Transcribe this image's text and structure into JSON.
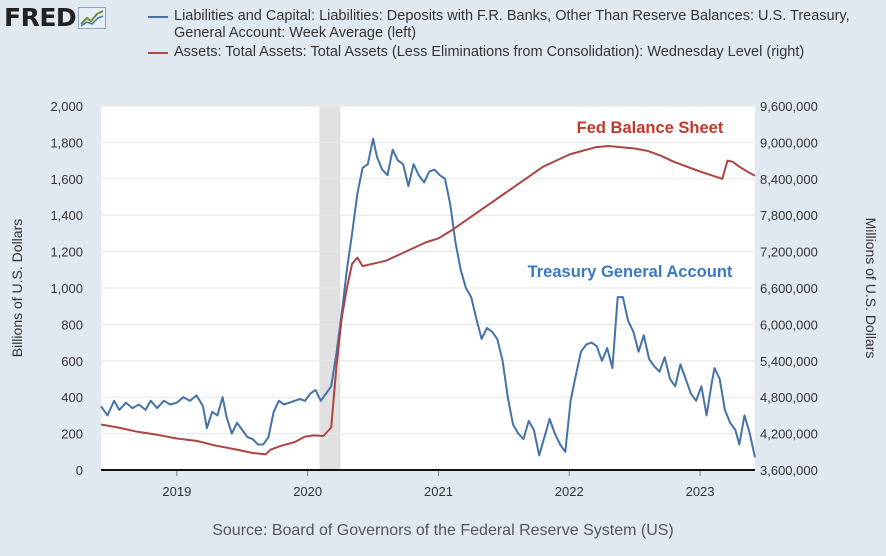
{
  "header": {
    "logo_text": "FRED",
    "logo_icon": "fred-graph-icon"
  },
  "legend": [
    {
      "label": "Liabilities and Capital: Liabilities: Deposits with F.R. Banks, Other Than Reserve Balances: U.S. Treasury, General Account: Week Average (left)",
      "color": "#4572a7"
    },
    {
      "label": "Assets: Total Assets: Total Assets (Less Eliminations from Consolidation): Wednesday Level (right)",
      "color": "#aa4643"
    }
  ],
  "source": "Source: Board of Governors of the Federal Reserve System (US)",
  "chart_data": {
    "type": "line",
    "ylabel_left": "Billions of U.S. Dollars",
    "ylabel_right": "Millions of U.S. Dollars",
    "y_left_ticks": [
      "0",
      "200",
      "400",
      "600",
      "800",
      "1,000",
      "1,200",
      "1,400",
      "1,600",
      "1,800",
      "2,000"
    ],
    "y_right_ticks": [
      "3,600,000",
      "4,200,000",
      "4,800,000",
      "5,400,000",
      "6,000,000",
      "6,600,000",
      "7,200,000",
      "7,800,000",
      "8,400,000",
      "9,000,000",
      "9,600,000"
    ],
    "ylim_left": [
      0,
      2000
    ],
    "ylim_right": [
      3600000,
      9600000
    ],
    "xlim": [
      2018.42,
      2023.42
    ],
    "x_ticks": [
      {
        "value": 2019,
        "label": "2019"
      },
      {
        "value": 2020,
        "label": "2020"
      },
      {
        "value": 2021,
        "label": "2021"
      },
      {
        "value": 2022,
        "label": "2022"
      },
      {
        "value": 2023,
        "label": "2023"
      }
    ],
    "recession": [
      2020.09,
      2020.25
    ],
    "grid": true,
    "annotations": [
      {
        "text": "Fed Balance Sheet",
        "color": "#c0392b"
      },
      {
        "text": "Treasury General Account",
        "color": "#3b78c4"
      }
    ],
    "series": [
      {
        "name": "Liabilities and Capital: Liabilities: Deposits with F.R. Banks, Other Than Reserve Balances: U.S. Treasury, General Account: Week Average (left)",
        "axis": "left",
        "color": "#4572a7",
        "points": [
          [
            2018.42,
            350
          ],
          [
            2018.47,
            300
          ],
          [
            2018.52,
            380
          ],
          [
            2018.56,
            330
          ],
          [
            2018.61,
            370
          ],
          [
            2018.66,
            340
          ],
          [
            2018.71,
            360
          ],
          [
            2018.76,
            330
          ],
          [
            2018.8,
            380
          ],
          [
            2018.85,
            340
          ],
          [
            2018.9,
            380
          ],
          [
            2018.95,
            360
          ],
          [
            2019.0,
            370
          ],
          [
            2019.05,
            400
          ],
          [
            2019.1,
            380
          ],
          [
            2019.15,
            410
          ],
          [
            2019.2,
            350
          ],
          [
            2019.23,
            230
          ],
          [
            2019.27,
            320
          ],
          [
            2019.31,
            300
          ],
          [
            2019.35,
            400
          ],
          [
            2019.38,
            290
          ],
          [
            2019.42,
            200
          ],
          [
            2019.46,
            260
          ],
          [
            2019.5,
            220
          ],
          [
            2019.54,
            180
          ],
          [
            2019.58,
            170
          ],
          [
            2019.62,
            140
          ],
          [
            2019.66,
            140
          ],
          [
            2019.7,
            180
          ],
          [
            2019.74,
            320
          ],
          [
            2019.78,
            380
          ],
          [
            2019.82,
            360
          ],
          [
            2019.86,
            370
          ],
          [
            2019.9,
            380
          ],
          [
            2019.94,
            390
          ],
          [
            2019.98,
            380
          ],
          [
            2020.02,
            420
          ],
          [
            2020.06,
            440
          ],
          [
            2020.1,
            380
          ],
          [
            2020.14,
            420
          ],
          [
            2020.18,
            460
          ],
          [
            2020.22,
            640
          ],
          [
            2020.26,
            860
          ],
          [
            2020.3,
            1100
          ],
          [
            2020.34,
            1300
          ],
          [
            2020.38,
            1520
          ],
          [
            2020.42,
            1660
          ],
          [
            2020.46,
            1680
          ],
          [
            2020.5,
            1820
          ],
          [
            2020.53,
            1720
          ],
          [
            2020.57,
            1650
          ],
          [
            2020.61,
            1620
          ],
          [
            2020.65,
            1760
          ],
          [
            2020.69,
            1700
          ],
          [
            2020.73,
            1680
          ],
          [
            2020.77,
            1560
          ],
          [
            2020.81,
            1680
          ],
          [
            2020.85,
            1620
          ],
          [
            2020.89,
            1580
          ],
          [
            2020.93,
            1640
          ],
          [
            2020.97,
            1650
          ],
          [
            2021.01,
            1620
          ],
          [
            2021.05,
            1600
          ],
          [
            2021.09,
            1460
          ],
          [
            2021.13,
            1250
          ],
          [
            2021.17,
            1100
          ],
          [
            2021.21,
            1000
          ],
          [
            2021.25,
            950
          ],
          [
            2021.29,
            830
          ],
          [
            2021.33,
            720
          ],
          [
            2021.37,
            780
          ],
          [
            2021.41,
            760
          ],
          [
            2021.45,
            720
          ],
          [
            2021.49,
            600
          ],
          [
            2021.53,
            400
          ],
          [
            2021.57,
            250
          ],
          [
            2021.61,
            200
          ],
          [
            2021.65,
            170
          ],
          [
            2021.69,
            270
          ],
          [
            2021.73,
            220
          ],
          [
            2021.77,
            80
          ],
          [
            2021.81,
            180
          ],
          [
            2021.85,
            280
          ],
          [
            2021.89,
            200
          ],
          [
            2021.93,
            140
          ],
          [
            2021.97,
            100
          ],
          [
            2022.01,
            380
          ],
          [
            2022.05,
            520
          ],
          [
            2022.09,
            650
          ],
          [
            2022.13,
            690
          ],
          [
            2022.17,
            700
          ],
          [
            2022.21,
            680
          ],
          [
            2022.25,
            600
          ],
          [
            2022.29,
            670
          ],
          [
            2022.33,
            560
          ],
          [
            2022.37,
            950
          ],
          [
            2022.41,
            950
          ],
          [
            2022.45,
            820
          ],
          [
            2022.49,
            760
          ],
          [
            2022.53,
            650
          ],
          [
            2022.57,
            740
          ],
          [
            2022.61,
            610
          ],
          [
            2022.65,
            570
          ],
          [
            2022.69,
            540
          ],
          [
            2022.73,
            620
          ],
          [
            2022.77,
            500
          ],
          [
            2022.81,
            460
          ],
          [
            2022.85,
            580
          ],
          [
            2022.89,
            500
          ],
          [
            2022.93,
            420
          ],
          [
            2022.97,
            380
          ],
          [
            2023.01,
            460
          ],
          [
            2023.05,
            300
          ],
          [
            2023.09,
            480
          ],
          [
            2023.11,
            560
          ],
          [
            2023.15,
            500
          ],
          [
            2023.19,
            330
          ],
          [
            2023.23,
            260
          ],
          [
            2023.27,
            220
          ],
          [
            2023.3,
            140
          ],
          [
            2023.34,
            300
          ],
          [
            2023.38,
            200
          ],
          [
            2023.42,
            70
          ]
        ]
      },
      {
        "name": "Assets: Total Assets: Total Assets (Less Eliminations from Consolidation): Wednesday Level (right)",
        "axis": "right",
        "color": "#aa4643",
        "points": [
          [
            2018.42,
            4350000
          ],
          [
            2018.55,
            4300000
          ],
          [
            2018.7,
            4230000
          ],
          [
            2018.85,
            4180000
          ],
          [
            2019.0,
            4120000
          ],
          [
            2019.15,
            4080000
          ],
          [
            2019.3,
            4000000
          ],
          [
            2019.45,
            3940000
          ],
          [
            2019.58,
            3880000
          ],
          [
            2019.68,
            3860000
          ],
          [
            2019.72,
            3940000
          ],
          [
            2019.8,
            4000000
          ],
          [
            2019.9,
            4060000
          ],
          [
            2019.98,
            4150000
          ],
          [
            2020.05,
            4170000
          ],
          [
            2020.12,
            4160000
          ],
          [
            2020.18,
            4300000
          ],
          [
            2020.22,
            5300000
          ],
          [
            2020.26,
            6100000
          ],
          [
            2020.3,
            6600000
          ],
          [
            2020.34,
            7000000
          ],
          [
            2020.38,
            7100000
          ],
          [
            2020.42,
            6960000
          ],
          [
            2020.46,
            6980000
          ],
          [
            2020.5,
            7000000
          ],
          [
            2020.6,
            7050000
          ],
          [
            2020.7,
            7150000
          ],
          [
            2020.8,
            7250000
          ],
          [
            2020.9,
            7350000
          ],
          [
            2021.0,
            7420000
          ],
          [
            2021.1,
            7550000
          ],
          [
            2021.2,
            7700000
          ],
          [
            2021.3,
            7850000
          ],
          [
            2021.4,
            8000000
          ],
          [
            2021.5,
            8150000
          ],
          [
            2021.6,
            8300000
          ],
          [
            2021.7,
            8450000
          ],
          [
            2021.8,
            8600000
          ],
          [
            2021.9,
            8700000
          ],
          [
            2022.0,
            8800000
          ],
          [
            2022.1,
            8860000
          ],
          [
            2022.2,
            8920000
          ],
          [
            2022.3,
            8940000
          ],
          [
            2022.4,
            8920000
          ],
          [
            2022.5,
            8900000
          ],
          [
            2022.6,
            8860000
          ],
          [
            2022.7,
            8780000
          ],
          [
            2022.8,
            8680000
          ],
          [
            2022.9,
            8600000
          ],
          [
            2023.0,
            8520000
          ],
          [
            2023.1,
            8450000
          ],
          [
            2023.17,
            8400000
          ],
          [
            2023.21,
            8700000
          ],
          [
            2023.25,
            8680000
          ],
          [
            2023.3,
            8600000
          ],
          [
            2023.36,
            8520000
          ],
          [
            2023.42,
            8450000
          ]
        ]
      }
    ]
  }
}
